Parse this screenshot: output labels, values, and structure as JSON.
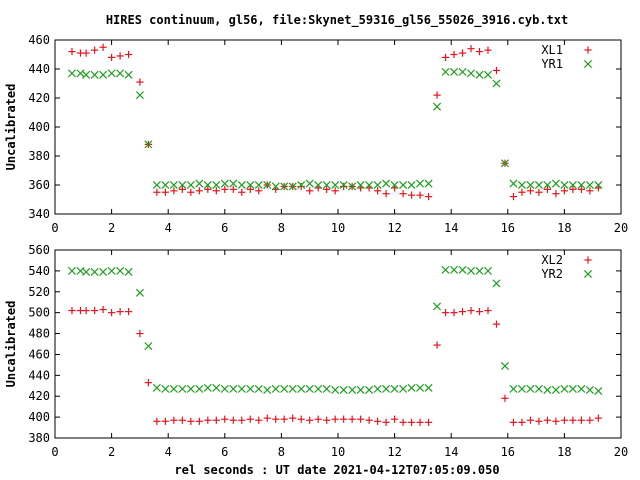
{
  "chart_data": {
    "title": "HIRES continuum, gl56, file:Skynet_59316_gl56_55026_3916.cyb.txt",
    "xlabel": "rel seconds : UT date 2021-04-12T07:05:09.050",
    "colors": {
      "XL": "#e8141e",
      "YR": "#1e9e1e"
    },
    "panels": [
      {
        "type": "scatter",
        "ylabel": "Uncalibrated",
        "xlim": [
          0,
          20
        ],
        "ylim": [
          340,
          460
        ],
        "xticks": [
          0,
          2,
          4,
          6,
          8,
          10,
          12,
          14,
          16,
          18,
          20
        ],
        "yticks": [
          340,
          360,
          380,
          400,
          420,
          440,
          460
        ],
        "legend_position": "top-right",
        "x": [
          0.6,
          0.9,
          1.1,
          1.4,
          1.7,
          2.0,
          2.3,
          2.6,
          3.0,
          3.3,
          3.6,
          3.9,
          4.2,
          4.5,
          4.8,
          5.1,
          5.4,
          5.7,
          6.0,
          6.3,
          6.6,
          6.9,
          7.2,
          7.5,
          7.8,
          8.1,
          8.4,
          8.7,
          9.0,
          9.3,
          9.6,
          9.9,
          10.2,
          10.5,
          10.8,
          11.1,
          11.4,
          11.7,
          12.0,
          12.3,
          12.6,
          12.9,
          13.2,
          13.5,
          13.8,
          14.1,
          14.4,
          14.7,
          15.0,
          15.3,
          15.6,
          15.9,
          16.2,
          16.5,
          16.8,
          17.1,
          17.4,
          17.7,
          18.0,
          18.3,
          18.6,
          18.9,
          19.2
        ],
        "series": [
          {
            "name": "XL1",
            "marker": "plus",
            "values": [
              452,
              451,
              451,
              453,
              455,
              448,
              449,
              450,
              431,
              388,
              355,
              355,
              356,
              357,
              355,
              356,
              357,
              356,
              357,
              357,
              355,
              357,
              356,
              360,
              357,
              359,
              359,
              359,
              356,
              358,
              357,
              356,
              359,
              359,
              358,
              358,
              356,
              354,
              358,
              354,
              353,
              353,
              352,
              422,
              448,
              450,
              451,
              454,
              452,
              453,
              439,
              375,
              352,
              355,
              356,
              355,
              357,
              354,
              356,
              357,
              357,
              356,
              358
            ]
          },
          {
            "name": "YR1",
            "marker": "cross",
            "values": [
              437,
              437,
              436,
              436,
              436,
              437,
              437,
              436,
              422,
              388,
              360,
              360,
              360,
              360,
              360,
              361,
              360,
              360,
              361,
              361,
              360,
              360,
              360,
              360,
              359,
              359,
              359,
              360,
              361,
              360,
              360,
              360,
              360,
              359,
              360,
              360,
              360,
              361,
              360,
              360,
              360,
              361,
              361,
              414,
              438,
              438,
              438,
              437,
              436,
              436,
              430,
              375,
              361,
              360,
              360,
              360,
              360,
              361,
              360,
              360,
              360,
              360,
              360
            ]
          }
        ]
      },
      {
        "type": "scatter",
        "ylabel": "Uncalibrated",
        "xlim": [
          0,
          20
        ],
        "ylim": [
          380,
          560
        ],
        "xticks": [
          0,
          2,
          4,
          6,
          8,
          10,
          12,
          14,
          16,
          18,
          20
        ],
        "yticks": [
          380,
          400,
          420,
          440,
          460,
          480,
          500,
          520,
          540,
          560
        ],
        "legend_position": "top-right",
        "x": [
          0.6,
          0.9,
          1.1,
          1.4,
          1.7,
          2.0,
          2.3,
          2.6,
          3.0,
          3.3,
          3.6,
          3.9,
          4.2,
          4.5,
          4.8,
          5.1,
          5.4,
          5.7,
          6.0,
          6.3,
          6.6,
          6.9,
          7.2,
          7.5,
          7.8,
          8.1,
          8.4,
          8.7,
          9.0,
          9.3,
          9.6,
          9.9,
          10.2,
          10.5,
          10.8,
          11.1,
          11.4,
          11.7,
          12.0,
          12.3,
          12.6,
          12.9,
          13.2,
          13.5,
          13.8,
          14.1,
          14.4,
          14.7,
          15.0,
          15.3,
          15.6,
          15.9,
          16.2,
          16.5,
          16.8,
          17.1,
          17.4,
          17.7,
          18.0,
          18.3,
          18.6,
          18.9,
          19.2
        ],
        "series": [
          {
            "name": "XL2",
            "marker": "plus",
            "values": [
              502,
              502,
              502,
              502,
              503,
              500,
              501,
              501,
              480,
              433,
              396,
              396,
              397,
              397,
              396,
              396,
              397,
              397,
              398,
              397,
              397,
              398,
              397,
              399,
              398,
              398,
              399,
              398,
              397,
              398,
              397,
              398,
              398,
              398,
              398,
              397,
              396,
              395,
              398,
              395,
              395,
              395,
              395,
              469,
              500,
              500,
              501,
              502,
              501,
              502,
              489,
              418,
              395,
              395,
              397,
              396,
              397,
              396,
              397,
              397,
              397,
              397,
              399
            ]
          },
          {
            "name": "YR2",
            "marker": "cross",
            "values": [
              540,
              540,
              539,
              539,
              539,
              540,
              540,
              539,
              519,
              468,
              428,
              427,
              427,
              427,
              427,
              427,
              428,
              428,
              427,
              427,
              427,
              427,
              427,
              426,
              427,
              427,
              427,
              427,
              427,
              427,
              427,
              426,
              426,
              426,
              426,
              426,
              427,
              427,
              427,
              427,
              428,
              428,
              428,
              506,
              541,
              541,
              541,
              540,
              540,
              540,
              528,
              449,
              427,
              427,
              427,
              427,
              426,
              426,
              427,
              427,
              427,
              426,
              425
            ]
          }
        ]
      }
    ]
  }
}
